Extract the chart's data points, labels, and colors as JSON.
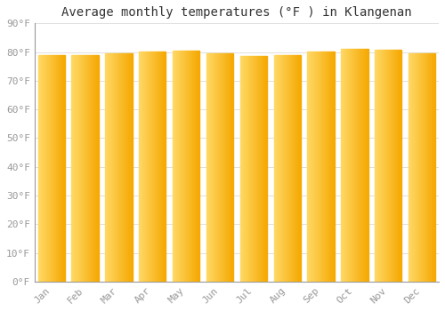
{
  "title": "Average monthly temperatures (°F ) in Klangenan",
  "months": [
    "Jan",
    "Feb",
    "Mar",
    "Apr",
    "May",
    "Jun",
    "Jul",
    "Aug",
    "Sep",
    "Oct",
    "Nov",
    "Dec"
  ],
  "values": [
    78.8,
    79.0,
    79.5,
    80.2,
    80.4,
    79.5,
    78.6,
    79.0,
    80.1,
    81.0,
    80.8,
    79.7
  ],
  "bar_color_left": "#FFD966",
  "bar_color_right": "#F5A800",
  "bar_color_mid": "#FFC125",
  "background_color": "#FFFFFF",
  "grid_color": "#E0E0E0",
  "ylim": [
    0,
    90
  ],
  "yticks": [
    0,
    10,
    20,
    30,
    40,
    50,
    60,
    70,
    80,
    90
  ],
  "ytick_labels": [
    "0°F",
    "10°F",
    "20°F",
    "30°F",
    "40°F",
    "50°F",
    "60°F",
    "70°F",
    "80°F",
    "90°F"
  ],
  "title_fontsize": 10,
  "tick_fontsize": 8,
  "tick_color": "#999999",
  "font_family": "monospace",
  "bar_width": 0.8
}
